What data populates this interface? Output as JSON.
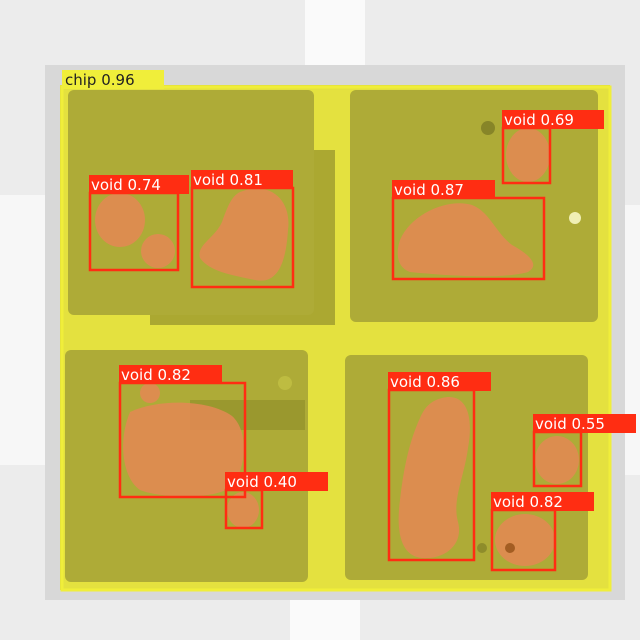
{
  "colors": {
    "background": "#e9e9e9",
    "chip_fill": "#e4e13a",
    "chip_box": "#f0ee3a",
    "pad_fill": "#8c8a2c",
    "void_fill": "#d8555a",
    "void_box": "#ff2d12",
    "void_label_text": "#ffffff",
    "chip_label_text": "#222222"
  },
  "detections": [
    {
      "label": "chip 0.96",
      "class": "chip"
    },
    {
      "label": "void 0.74",
      "class": "void"
    },
    {
      "label": "void 0.81",
      "class": "void"
    },
    {
      "label": "void 0.87",
      "class": "void"
    },
    {
      "label": "void 0.69",
      "class": "void"
    },
    {
      "label": "void 0.82",
      "class": "void"
    },
    {
      "label": "void 0.40",
      "class": "void"
    },
    {
      "label": "void 0.86",
      "class": "void"
    },
    {
      "label": "void 0.55",
      "class": "void"
    },
    {
      "label": "void 0.82",
      "class": "void"
    }
  ]
}
